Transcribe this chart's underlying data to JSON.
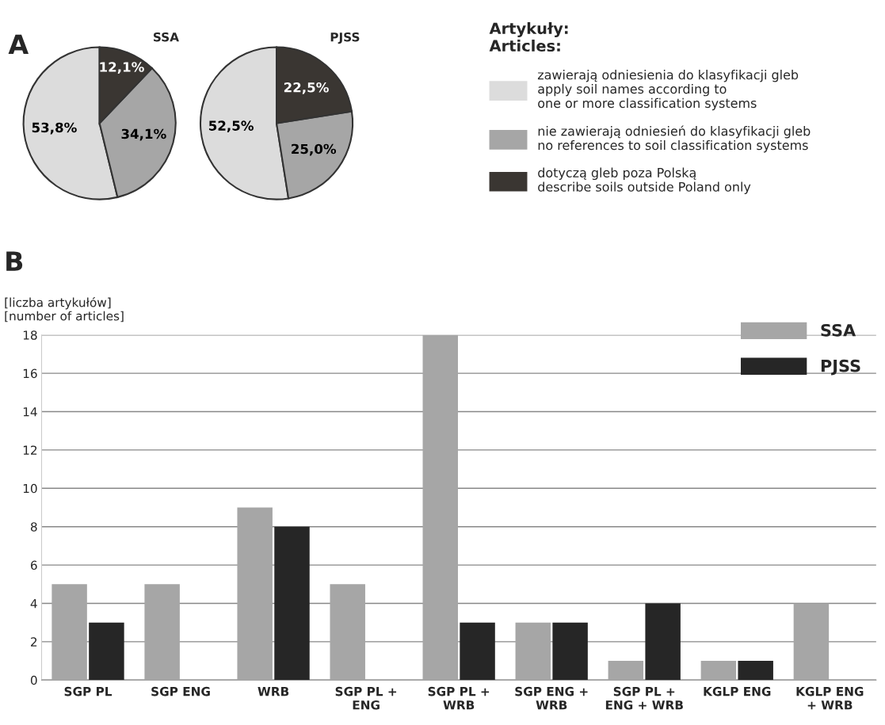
{
  "chart_data": [
    {
      "type": "pie",
      "title": "SSA",
      "annotations": [
        "A"
      ],
      "legend_title": "Artykuły:\nArticles:",
      "legend": "right",
      "categories": [
        "zawierają odniesienia do klasyfikacji gleb\napply soil names according to\none or more classification systems",
        "nie zawierają odniesień do klasyfikacji gleb\nno references to soil classification systems",
        "dotyczą gleb poza Polską\ndescribe soils outside Poland only"
      ],
      "values": [
        53.8,
        34.1,
        12.1
      ],
      "value_labels": [
        "53,8%",
        "34,1%",
        "12,1%"
      ],
      "colors": [
        "#dcdcdc",
        "#a6a6a6",
        "#3a3632"
      ]
    },
    {
      "type": "pie",
      "title": "PJSS",
      "categories": [
        null,
        null,
        null
      ],
      "values": [
        52.5,
        25.0,
        22.5
      ],
      "value_labels": [
        "52,5%",
        "25,0%",
        "22,5%"
      ],
      "colors": [
        "#dcdcdc",
        "#a6a6a6",
        "#3a3632"
      ]
    },
    {
      "type": "bar",
      "annotations": [
        "B"
      ],
      "ylabel": "[liczba artykułów]\n[number of articles]",
      "categories": [
        "SGP PL",
        "SGP ENG",
        "WRB",
        "SGP PL +\nENG",
        "SGP PL +\nWRB",
        "SGP ENG +\nWRB",
        "SGP PL +\nENG + WRB",
        "KGLP ENG",
        "KGLP ENG\n+ WRB"
      ],
      "series": [
        {
          "name": "SSA",
          "color": "#a6a6a6",
          "values": [
            5,
            5,
            9,
            5,
            18,
            3,
            1,
            1,
            4
          ]
        },
        {
          "name": "PJSS",
          "color": "#262626",
          "values": [
            3,
            0,
            8,
            0,
            3,
            3,
            4,
            1,
            0
          ]
        }
      ],
      "ylim": [
        0,
        18
      ],
      "yticks": [
        0,
        2,
        4,
        6,
        8,
        10,
        12,
        14,
        16,
        18
      ],
      "grid": "y",
      "legend": "top right"
    }
  ]
}
